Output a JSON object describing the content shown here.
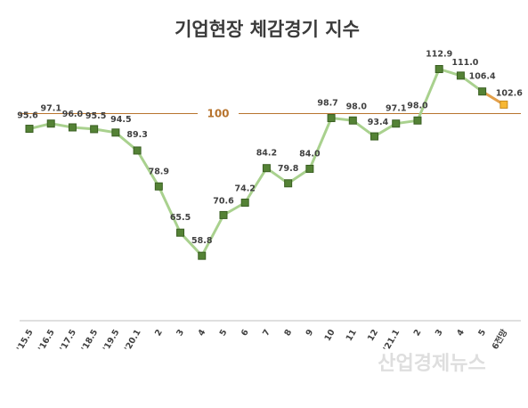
{
  "chart_data": {
    "type": "line",
    "title": "기업현장 체감경기 지수",
    "categories": [
      "'15.5",
      "'16.5",
      "'17.5",
      "'18.5",
      "'19.5",
      "'20.1",
      "2",
      "3",
      "4",
      "5",
      "6",
      "7",
      "8",
      "9",
      "10",
      "11",
      "12",
      "'21.1",
      "2",
      "3",
      "4",
      "5",
      "6전망"
    ],
    "values": [
      95.6,
      97.1,
      96.0,
      95.5,
      94.5,
      89.3,
      78.9,
      65.5,
      58.8,
      70.6,
      74.2,
      84.2,
      79.8,
      84.0,
      98.7,
      98.0,
      93.4,
      97.1,
      98.0,
      112.9,
      111.0,
      106.4,
      102.6
    ],
    "ylim": [
      40,
      120
    ],
    "reference_line": {
      "value": 100,
      "label": "100",
      "color": "#b7742e"
    },
    "line_color": "#a9d18e",
    "marker_color": "#548235",
    "forecast_line_color": "#e3a04a",
    "forecast_marker_color": "#f7b733",
    "grid": false,
    "legend": "none"
  },
  "watermark": "산업경제뉴스"
}
